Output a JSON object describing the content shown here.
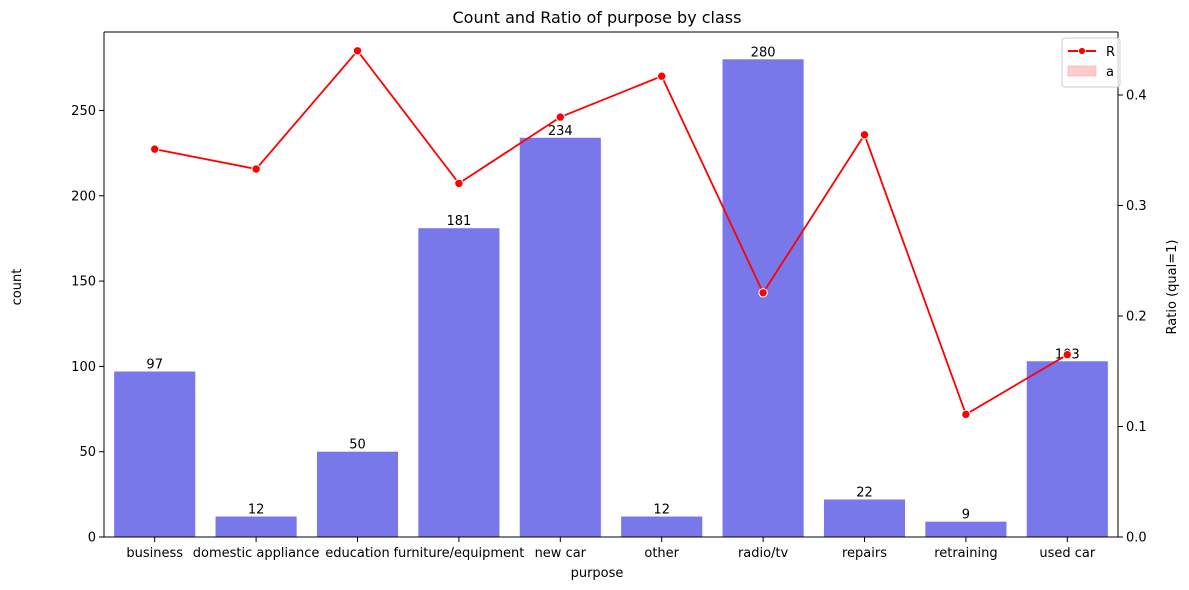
{
  "chart_data": {
    "type": "bar",
    "title": "Count and Ratio of purpose by class",
    "xlabel": "purpose",
    "ylabel": "count",
    "y2label": "Ratio (qual=1)",
    "categories": [
      "business",
      "domestic appliance",
      "education",
      "furniture/equipment",
      "new car",
      "other",
      "radio/tv",
      "repairs",
      "retraining",
      "used car"
    ],
    "series": [
      {
        "type": "bar",
        "values": [
          97,
          12,
          50,
          181,
          234,
          12,
          280,
          22,
          9,
          103
        ],
        "color": "#7878eb",
        "data_labels": [
          "97",
          "12",
          "50",
          "181",
          "234",
          "12",
          "280",
          "22",
          "9",
          "103"
        ]
      },
      {
        "type": "line",
        "axis": "right",
        "values": [
          0.351,
          0.333,
          0.44,
          0.32,
          0.38,
          0.417,
          0.221,
          0.364,
          0.111,
          0.165
        ],
        "color": "#ff0000"
      }
    ],
    "ylim": [
      0,
      296
    ],
    "y2lim": [
      0,
      0.457
    ],
    "yticks": [
      0,
      50,
      100,
      150,
      200,
      250
    ],
    "y2ticks": [
      0.0,
      0.1,
      0.2,
      0.3,
      0.4
    ],
    "ytick_labels": [
      "0",
      "50",
      "100",
      "150",
      "200",
      "250"
    ],
    "y2tick_labels": [
      "0.0",
      "0.1",
      "0.2",
      "0.3",
      "0.4"
    ],
    "legend": {
      "position": "top-right",
      "entries": [
        {
          "label": "R",
          "kind": "line-marker",
          "color": "#ff0000"
        },
        {
          "label": "a",
          "kind": "patch",
          "color": "#ffcccc",
          "edge": "#ff9999"
        }
      ]
    },
    "grid": false
  }
}
